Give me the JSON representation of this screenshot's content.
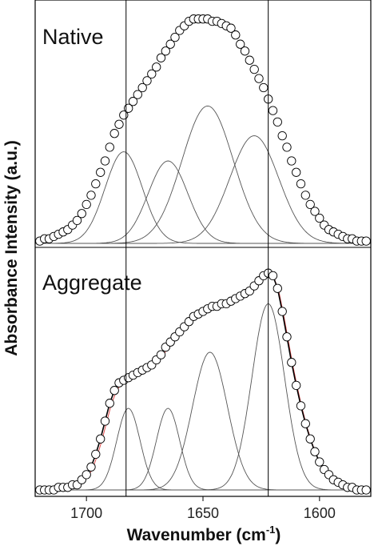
{
  "chart_data": {
    "type": "line",
    "xlabel": "Wavenumber (cm",
    "xlabel_sup": "-1",
    "xlabel_end": ")",
    "ylabel": "Absorbance Intensity (a.u.)",
    "x_ticks": [
      1700,
      1650,
      1600
    ],
    "xlim": [
      1722,
      1578
    ],
    "reference_lines": [
      1683,
      1622
    ],
    "grid": false,
    "colors": {
      "markers": "#000000",
      "components": "#555555",
      "fit": "#000000",
      "residual": "#e04a4a"
    },
    "panels": [
      {
        "label": "Native",
        "ylim": [
          0,
          1.0
        ],
        "observed": {
          "x": [
            1720,
            1718,
            1716,
            1714,
            1712,
            1710,
            1708,
            1706,
            1704,
            1702,
            1700,
            1698,
            1696,
            1694,
            1692,
            1690,
            1688,
            1686,
            1684,
            1682,
            1680,
            1678,
            1676,
            1674,
            1672,
            1670,
            1668,
            1666,
            1664,
            1662,
            1660,
            1658,
            1656,
            1654,
            1652,
            1650,
            1648,
            1646,
            1644,
            1642,
            1640,
            1638,
            1636,
            1634,
            1632,
            1630,
            1628,
            1626,
            1624,
            1622,
            1620,
            1618,
            1616,
            1614,
            1612,
            1610,
            1608,
            1606,
            1604,
            1602,
            1600,
            1598,
            1596,
            1594,
            1592,
            1590,
            1588,
            1586,
            1584,
            1582,
            1580
          ],
          "y": [
            0.01,
            0.02,
            0.02,
            0.03,
            0.04,
            0.05,
            0.06,
            0.08,
            0.1,
            0.13,
            0.17,
            0.21,
            0.26,
            0.31,
            0.36,
            0.42,
            0.48,
            0.52,
            0.56,
            0.59,
            0.62,
            0.65,
            0.68,
            0.71,
            0.74,
            0.77,
            0.81,
            0.84,
            0.87,
            0.9,
            0.93,
            0.95,
            0.97,
            0.98,
            0.98,
            0.98,
            0.98,
            0.97,
            0.97,
            0.96,
            0.95,
            0.94,
            0.91,
            0.87,
            0.84,
            0.8,
            0.76,
            0.72,
            0.68,
            0.63,
            0.58,
            0.53,
            0.47,
            0.42,
            0.36,
            0.31,
            0.26,
            0.21,
            0.17,
            0.14,
            0.11,
            0.08,
            0.06,
            0.05,
            0.04,
            0.03,
            0.02,
            0.02,
            0.01,
            0.01,
            0.01
          ]
        },
        "components": [
          {
            "center": 1684,
            "amplitude": 0.4,
            "sigma": 8.0
          },
          {
            "center": 1665,
            "amplitude": 0.36,
            "sigma": 8.5
          },
          {
            "center": 1648,
            "amplitude": 0.6,
            "sigma": 11.0
          },
          {
            "center": 1628,
            "amplitude": 0.47,
            "sigma": 10.5
          }
        ]
      },
      {
        "label": "Aggregate",
        "ylim": [
          0,
          0.86
        ],
        "observed": {
          "x": [
            1720,
            1718,
            1716,
            1714,
            1712,
            1710,
            1708,
            1706,
            1704,
            1702,
            1700,
            1698,
            1696,
            1694,
            1692,
            1690,
            1688,
            1686,
            1684,
            1682,
            1680,
            1678,
            1676,
            1674,
            1672,
            1670,
            1668,
            1666,
            1664,
            1662,
            1660,
            1658,
            1656,
            1654,
            1652,
            1650,
            1648,
            1646,
            1644,
            1642,
            1640,
            1638,
            1636,
            1634,
            1632,
            1630,
            1628,
            1626,
            1624,
            1622,
            1620,
            1618,
            1616,
            1614,
            1612,
            1610,
            1608,
            1606,
            1604,
            1602,
            1600,
            1598,
            1596,
            1594,
            1592,
            1590,
            1588,
            1586,
            1584,
            1582,
            1580
          ],
          "y": [
            0.0,
            0.0,
            0.0,
            0.0,
            0.01,
            0.01,
            0.01,
            0.02,
            0.02,
            0.04,
            0.06,
            0.09,
            0.14,
            0.2,
            0.27,
            0.34,
            0.39,
            0.42,
            0.43,
            0.44,
            0.45,
            0.46,
            0.47,
            0.48,
            0.49,
            0.51,
            0.53,
            0.56,
            0.58,
            0.6,
            0.62,
            0.64,
            0.66,
            0.68,
            0.69,
            0.7,
            0.71,
            0.72,
            0.72,
            0.73,
            0.73,
            0.74,
            0.75,
            0.76,
            0.77,
            0.78,
            0.8,
            0.82,
            0.84,
            0.85,
            0.84,
            0.79,
            0.7,
            0.6,
            0.5,
            0.41,
            0.33,
            0.26,
            0.2,
            0.15,
            0.11,
            0.08,
            0.06,
            0.04,
            0.03,
            0.02,
            0.01,
            0.01,
            0.0,
            0.0,
            0.0
          ]
        },
        "components": [
          {
            "center": 1682,
            "amplitude": 0.32,
            "sigma": 5.0
          },
          {
            "center": 1665,
            "amplitude": 0.32,
            "sigma": 5.0
          },
          {
            "center": 1647,
            "amplitude": 0.54,
            "sigma": 7.5
          },
          {
            "center": 1622,
            "amplitude": 0.73,
            "sigma": 7.0
          }
        ]
      }
    ]
  }
}
